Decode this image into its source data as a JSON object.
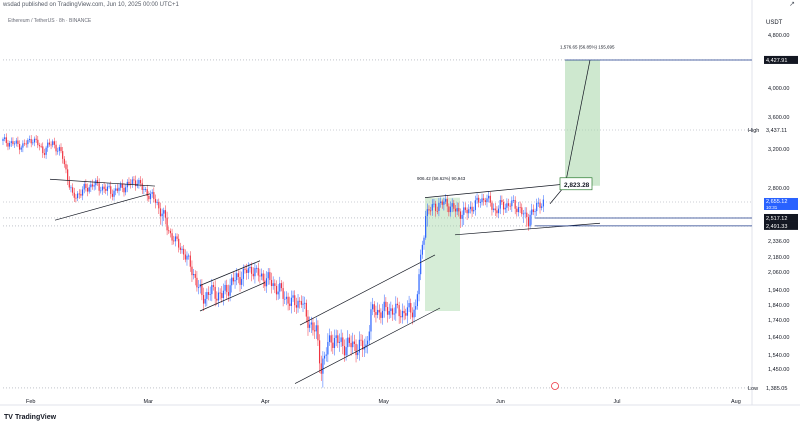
{
  "header": {
    "publish_text": "wsdad published on TradingView.com, Jun 10, 2025 00:00 UTC+1",
    "symbol_text": "Ethereum / TetherUS · 8h · BINANCE"
  },
  "currency": "USDT",
  "logo_text": "TradingView",
  "colors": {
    "up": "#2962ff",
    "down": "#ef3340",
    "pattern_line": "#131722",
    "target_zone": "#a5d6a7",
    "accent_line": "#1e3a8a"
  },
  "chart_data": {
    "type": "candlestick",
    "x_ticks": [
      "Feb",
      "Mar",
      "Apr",
      "May",
      "Jun",
      "Jul",
      "Aug"
    ],
    "y_ticks": [
      "4,800.00",
      "4,000.00",
      "3,600.00",
      "3,200.00",
      "2,800.00",
      "2,336.00",
      "2,180.00",
      "2,060.00",
      "1,940.00",
      "1,840.00",
      "1,740.00",
      "1,640.00",
      "1,540.00",
      "1,450.00"
    ],
    "ylim": [
      1340,
      4900
    ],
    "price_labels": [
      {
        "value": 4427.91,
        "text": "4,427.91",
        "style": "dark"
      },
      {
        "value": 3437.11,
        "text": "3,437.11",
        "label": "High",
        "style": "plain"
      },
      {
        "value": 2655.12,
        "text": "2,655.12",
        "sub": "10:31",
        "style": "blue"
      },
      {
        "value": 2517.12,
        "text": "2,517.12",
        "style": "dark"
      },
      {
        "value": 2491.33,
        "text": "2,491.33",
        "style": "dark"
      },
      {
        "value": 1385.05,
        "text": "1,385.05",
        "label": "Low",
        "style": "plain"
      }
    ],
    "annotations": {
      "measure_1": "906.42 (56.62%) 90,943",
      "measure_2": "1,576.65 (56.85%) 155,695",
      "target_box": "2,823.28"
    },
    "candles": {
      "anchors": [
        [
          0,
          3300
        ],
        [
          4,
          3240
        ],
        [
          6,
          3330
        ],
        [
          8,
          3180
        ],
        [
          10,
          3280
        ],
        [
          12,
          3120
        ],
        [
          14,
          2700
        ],
        [
          18,
          2840
        ],
        [
          22,
          2760
        ],
        [
          25,
          2830
        ],
        [
          27,
          2880
        ],
        [
          28,
          2790
        ],
        [
          30,
          2710
        ],
        [
          32,
          2560
        ],
        [
          34,
          2380
        ],
        [
          36,
          2250
        ],
        [
          38,
          2080
        ],
        [
          40,
          1890
        ],
        [
          42,
          1930
        ],
        [
          44,
          1900
        ],
        [
          46,
          1990
        ],
        [
          48,
          2040
        ],
        [
          50,
          2090
        ],
        [
          51,
          2050
        ],
        [
          53,
          2010
        ],
        [
          54,
          1990
        ],
        [
          56,
          1920
        ],
        [
          58,
          1850
        ],
        [
          60,
          1870
        ],
        [
          61,
          1760
        ],
        [
          63,
          1660
        ],
        [
          64,
          1470
        ],
        [
          66,
          1640
        ],
        [
          68,
          1600
        ],
        [
          71,
          1590
        ],
        [
          73,
          1580
        ],
        [
          74,
          1790
        ],
        [
          76,
          1800
        ],
        [
          78,
          1810
        ],
        [
          80,
          1790
        ],
        [
          82,
          1800
        ],
        [
          83,
          1820
        ],
        [
          84,
          2150
        ],
        [
          85,
          2560
        ],
        [
          87,
          2620
        ],
        [
          89,
          2650
        ],
        [
          91,
          2580
        ],
        [
          93,
          2560
        ],
        [
          95,
          2640
        ],
        [
          97,
          2700
        ],
        [
          99,
          2580
        ],
        [
          100,
          2620
        ],
        [
          102,
          2640
        ],
        [
          104,
          2600
        ],
        [
          105,
          2510
        ],
        [
          106,
          2560
        ],
        [
          107,
          2580
        ],
        [
          108,
          2655
        ]
      ],
      "count": 109
    },
    "projections": [
      {
        "from": [
          109,
          2640
        ],
        "to": [
          112,
          2823
        ],
        "kind": "arrow"
      },
      {
        "from": [
          112,
          2823
        ],
        "to": [
          117,
          4427
        ],
        "kind": "arrow"
      }
    ],
    "patterns": [
      {
        "kind": "triangle",
        "upper": [
          [
            9,
            2890
          ],
          [
            30,
            2820
          ]
        ],
        "lower": [
          [
            10,
            2510
          ],
          [
            29,
            2740
          ]
        ]
      },
      {
        "kind": "channel",
        "upper": [
          [
            39,
            1970
          ],
          [
            51,
            2150
          ]
        ],
        "lower": [
          [
            39,
            1800
          ],
          [
            52,
            1990
          ]
        ]
      },
      {
        "kind": "channel",
        "upper": [
          [
            59,
            1710
          ],
          [
            86,
            2200
          ]
        ],
        "lower": [
          [
            58,
            1400
          ],
          [
            87,
            1820
          ]
        ]
      },
      {
        "kind": "channel",
        "upper": [
          [
            84,
            2700
          ],
          [
            114,
            2850
          ]
        ],
        "lower": [
          [
            90,
            2400
          ],
          [
            119,
            2500
          ]
        ]
      }
    ],
    "zones": [
      {
        "kind": "measure",
        "x": [
          84,
          91
        ],
        "y": [
          1800,
          2700
        ]
      },
      {
        "kind": "target",
        "x": [
          112,
          119
        ],
        "y": [
          2823,
          4427
        ]
      }
    ]
  }
}
